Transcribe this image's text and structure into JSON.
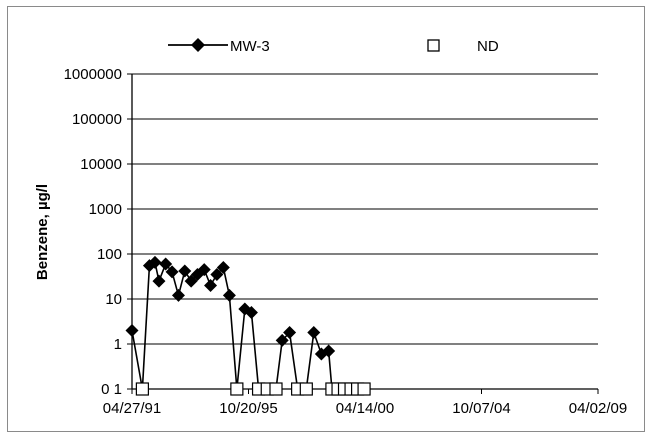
{
  "chart_data": {
    "type": "line",
    "title": "",
    "xlabel": "",
    "ylabel": "Benzene, µg/l",
    "y_scale": "log",
    "ylim": [
      0.1,
      1000000
    ],
    "xlim": [
      "1991-04-27",
      "2009-04-02"
    ],
    "x_tick_labels": [
      "04/27/91",
      "10/20/95",
      "04/14/00",
      "10/07/04",
      "04/02/09"
    ],
    "y_tick_labels": [
      "0 1",
      "1",
      "10",
      "100",
      "1000",
      "10000",
      "100000",
      "1000000"
    ],
    "grid": "horizontal",
    "legend_position": "top",
    "colors": {
      "series": "#000000",
      "nd_fill": "#ffffff"
    },
    "series": [
      {
        "name": "MW-3",
        "marker": "filled-diamond",
        "points": [
          {
            "x": "1991-04-27",
            "y": 2
          },
          {
            "x": "1991-09-20",
            "y": 0.1
          },
          {
            "x": "1991-12-28",
            "y": 55
          },
          {
            "x": "1992-03-15",
            "y": 65
          },
          {
            "x": "1992-05-10",
            "y": 25
          },
          {
            "x": "1992-08-12",
            "y": 60
          },
          {
            "x": "1992-11-10",
            "y": 40
          },
          {
            "x": "1993-02-08",
            "y": 12
          },
          {
            "x": "1993-05-08",
            "y": 42
          },
          {
            "x": "1993-08-05",
            "y": 25
          },
          {
            "x": "1993-11-02",
            "y": 35
          },
          {
            "x": "1994-02-05",
            "y": 45
          },
          {
            "x": "1994-05-05",
            "y": 20
          },
          {
            "x": "1994-08-02",
            "y": 35
          },
          {
            "x": "1994-11-01",
            "y": 50
          },
          {
            "x": "1995-01-25",
            "y": 12
          },
          {
            "x": "1995-05-10",
            "y": 0.1
          },
          {
            "x": "1995-08-30",
            "y": 6
          },
          {
            "x": "1995-12-01",
            "y": 5
          },
          {
            "x": "1996-03-10",
            "y": 0.1
          },
          {
            "x": "1996-07-10",
            "y": 0.1
          },
          {
            "x": "1996-11-10",
            "y": 0.1
          },
          {
            "x": "1997-02-05",
            "y": 1.2
          },
          {
            "x": "1997-05-20",
            "y": 1.8
          },
          {
            "x": "1997-09-10",
            "y": 0.1
          },
          {
            "x": "1998-01-10",
            "y": 0.1
          },
          {
            "x": "1998-04-25",
            "y": 1.8
          },
          {
            "x": "1998-08-10",
            "y": 0.6
          },
          {
            "x": "1998-11-20",
            "y": 0.7
          },
          {
            "x": "1999-01-05",
            "y": 0.1
          },
          {
            "x": "1999-04-01",
            "y": 0.1
          },
          {
            "x": "1999-07-01",
            "y": 0.1
          },
          {
            "x": "1999-10-01",
            "y": 0.1
          },
          {
            "x": "2000-01-01",
            "y": 0.1
          },
          {
            "x": "2000-04-01",
            "y": 0.1
          }
        ]
      },
      {
        "name": "ND",
        "marker": "open-square",
        "points": [
          {
            "x": "1991-09-20",
            "y": 0.1
          },
          {
            "x": "1995-05-10",
            "y": 0.1
          },
          {
            "x": "1996-03-10",
            "y": 0.1
          },
          {
            "x": "1996-07-10",
            "y": 0.1
          },
          {
            "x": "1996-11-10",
            "y": 0.1
          },
          {
            "x": "1997-09-10",
            "y": 0.1
          },
          {
            "x": "1998-01-10",
            "y": 0.1
          },
          {
            "x": "1999-01-05",
            "y": 0.1
          },
          {
            "x": "1999-04-01",
            "y": 0.1
          },
          {
            "x": "1999-07-01",
            "y": 0.1
          },
          {
            "x": "1999-10-01",
            "y": 0.1
          },
          {
            "x": "2000-01-01",
            "y": 0.1
          },
          {
            "x": "2000-04-01",
            "y": 0.1
          }
        ]
      }
    ]
  }
}
